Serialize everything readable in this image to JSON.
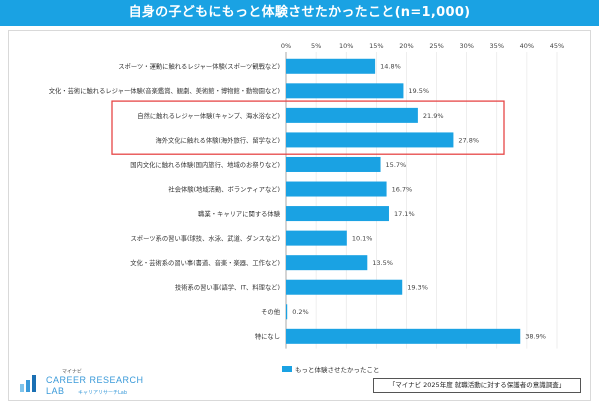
{
  "title": "自身の子どもにもっと体験させたかったこと(n=1,000)",
  "colors": {
    "bar": "#1aa2e3",
    "header": "#1aa2e3",
    "highlight": "#e64646"
  },
  "chart_data": {
    "type": "bar",
    "orientation": "horizontal",
    "categories": [
      "スポーツ・運動に触れるレジャー体験(スポーツ観戦など)",
      "文化・芸術に触れるレジャー体験(音楽鑑賞、観劇、美術館・博物館・動物園など)",
      "自然に触れるレジャー体験(キャンプ、海水浴など)",
      "海外文化に触れる体験(海外旅行、留学など)",
      "国内文化に触れる体験(国内旅行、地域のお祭りなど)",
      "社会体験(地域活動、ボランティアなど)",
      "職業・キャリアに関する体験",
      "スポーツ系の習い事(球技、水泳、武道、ダンスなど)",
      "文化・芸術系の習い事(書道、音楽・楽器、工作など)",
      "技術系の習い事(語学、IT、料理など)",
      "その他",
      "特になし"
    ],
    "series": [
      {
        "name": "もっと体験させたかったこと",
        "values": [
          14.8,
          19.5,
          21.9,
          27.8,
          15.7,
          16.7,
          17.1,
          10.1,
          13.5,
          19.3,
          0.2,
          38.9
        ]
      }
    ],
    "value_labels": [
      "14.8%",
      "19.5%",
      "21.9%",
      "27.8%",
      "15.7%",
      "16.7%",
      "17.1%",
      "10.1%",
      "13.5%",
      "19.3%",
      "0.2%",
      "38.9%"
    ],
    "xticks": [
      0,
      5,
      10,
      15,
      20,
      25,
      30,
      35,
      40,
      45
    ],
    "xtick_labels": [
      "0%",
      "5%",
      "10%",
      "15%",
      "20%",
      "25%",
      "30%",
      "35%",
      "40%",
      "45%"
    ],
    "xlim": [
      0,
      45
    ],
    "highlighted_categories": [
      2,
      3
    ],
    "legend_position": "bottom"
  },
  "legend_label": "もっと体験させたかったこと",
  "source": "「マイナビ 2025年度 就職活動に対する保護者の意識調査」",
  "logo": {
    "small": "マイナビ",
    "line1": "CAREER RESEARCH",
    "line2": "LAB",
    "sub": "キャリアリサーチLab"
  }
}
